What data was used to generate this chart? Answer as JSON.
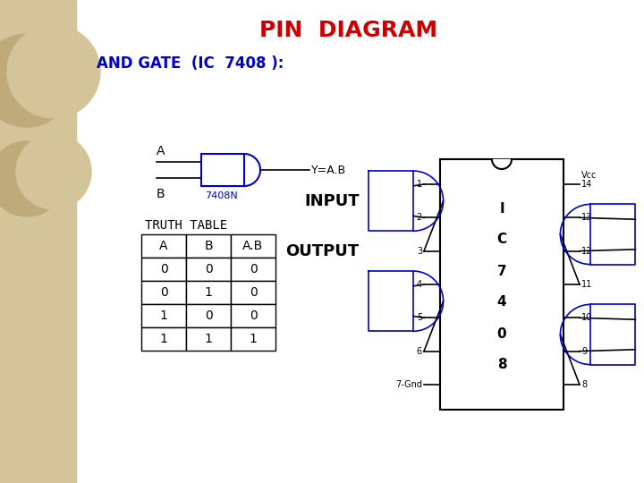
{
  "title": "PIN  DIAGRAM",
  "title_color": "#cc0000",
  "subtitle": "AND GATE  (IC  7408 ):",
  "subtitle_color": "#0000cc",
  "bg_color": "#ffffff",
  "left_panel_bg": "#d4c49a",
  "gate_color": "#0000cc",
  "truth_table_header": [
    "A",
    "B",
    "A.B"
  ],
  "truth_table_rows": [
    [
      "0",
      "0",
      "0"
    ],
    [
      "0",
      "1",
      "0"
    ],
    [
      "1",
      "0",
      "0"
    ],
    [
      "1",
      "1",
      "1"
    ]
  ],
  "input_label": "INPUT",
  "output_label": "OUTPUT",
  "ic_center_labels": [
    "I",
    "C",
    "7",
    "4",
    "0",
    "8"
  ],
  "left_pin_labels": [
    "1",
    "2",
    "3",
    "4",
    "5",
    "6",
    "7"
  ],
  "right_pin_labels": [
    "14",
    "13",
    "12",
    "11",
    "10",
    "9",
    "8"
  ]
}
